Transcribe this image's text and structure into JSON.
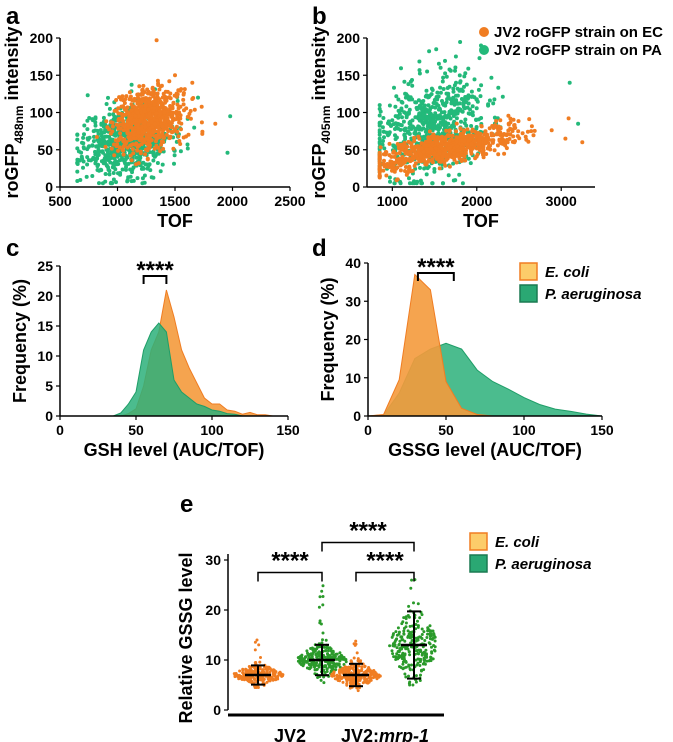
{
  "colors": {
    "ec": "#f07d22",
    "pa": "#23b97a",
    "ec_fill": "#f49a3c",
    "pa_fill": "#2bb07a",
    "ec_legend_fill": "#fccc6a",
    "ec_legend_stroke": "#f07d22",
    "pa_legend_fill": "#2aa873",
    "pa_legend_stroke": "#1b7a52",
    "pa_dot_e": "#2a9a2a"
  },
  "panels": {
    "a": "a",
    "b": "b",
    "c": "c",
    "d": "d",
    "e": "e"
  },
  "legends": {
    "ab": [
      "JV2 roGFP strain on EC",
      "JV2 roGFP strain on PA"
    ],
    "cd": [
      "E. coli",
      "P. aeruginosa"
    ],
    "e": [
      "E. coli",
      "P. aeruginosa"
    ]
  },
  "chart_data": [
    {
      "id": "a",
      "type": "scatter",
      "xlabel": "TOF",
      "ylabel_parts": [
        "roGFP",
        "488nm",
        " intensity"
      ],
      "xlim": [
        500,
        2500
      ],
      "ylim": [
        0,
        200
      ],
      "xticks": [
        500,
        1000,
        1500,
        2000,
        2500
      ],
      "yticks": [
        0,
        50,
        100,
        150,
        200
      ],
      "series": [
        {
          "name": "JV2 roGFP strain on PA",
          "color": "pa",
          "cloud": {
            "n": 700,
            "xmean": 1080,
            "xsd": 190,
            "ymean": 62,
            "ysd": 24,
            "seed": 11
          }
        },
        {
          "name": "JV2 roGFP strain on EC",
          "color": "ec",
          "cloud": {
            "n": 750,
            "xmean": 1270,
            "xsd": 150,
            "ymean": 90,
            "ysd": 20,
            "seed": 7
          }
        }
      ],
      "points": [
        {
          "x": 1340,
          "y": 197,
          "series": "ec"
        },
        {
          "x": 1500,
          "y": 150,
          "series": "ec"
        },
        {
          "x": 1650,
          "y": 140,
          "series": "ec"
        },
        {
          "x": 1850,
          "y": 85,
          "series": "ec"
        },
        {
          "x": 1980,
          "y": 95,
          "series": "pa"
        },
        {
          "x": 1700,
          "y": 120,
          "series": "pa"
        }
      ]
    },
    {
      "id": "b",
      "type": "scatter",
      "xlabel": "TOF",
      "ylabel_parts": [
        "roGFP",
        "405nm",
        " intensity"
      ],
      "xlim": [
        700,
        3400
      ],
      "ylim": [
        0,
        200
      ],
      "xticks": [
        1000,
        2000,
        3000
      ],
      "yticks": [
        0,
        50,
        100,
        150,
        200
      ],
      "series": [
        {
          "name": "JV2 roGFP strain on PA",
          "color": "pa",
          "cloud": {
            "n": 700,
            "xmean": 1450,
            "xsd": 330,
            "ymean": 78,
            "ysd": 34,
            "seed": 23
          }
        },
        {
          "name": "JV2 roGFP strain on EC",
          "color": "ec",
          "cloud": {
            "n": 750,
            "xmean": 1650,
            "xsd": 450,
            "ymean": 53,
            "ysd": 10,
            "seed": 31
          }
        }
      ],
      "points": [
        {
          "x": 1520,
          "y": 185,
          "series": "pa"
        },
        {
          "x": 2050,
          "y": 190,
          "series": "pa"
        },
        {
          "x": 3100,
          "y": 140,
          "series": "pa"
        },
        {
          "x": 3200,
          "y": 85,
          "series": "pa"
        },
        {
          "x": 3250,
          "y": 60,
          "series": "ec"
        },
        {
          "x": 3050,
          "y": 65,
          "series": "ec"
        }
      ]
    },
    {
      "id": "c",
      "type": "area",
      "xlabel": "GSH level (AUC/TOF)",
      "ylabel": "Frequency (%)",
      "xlim": [
        0,
        150
      ],
      "ylim": [
        0,
        25
      ],
      "xticks": [
        0,
        50,
        100,
        150
      ],
      "yticks": [
        0,
        5,
        10,
        15,
        20,
        25
      ],
      "significance": "****",
      "bracket": [
        55,
        70
      ],
      "series": [
        {
          "name": "E. coli",
          "color": "ec",
          "x": [
            0,
            35,
            40,
            45,
            50,
            55,
            60,
            65,
            70,
            75,
            80,
            85,
            90,
            95,
            100,
            105,
            110,
            115,
            120,
            125,
            130,
            135,
            140
          ],
          "y": [
            0,
            0,
            0,
            0.4,
            1.2,
            5,
            11,
            14,
            21,
            16.5,
            11,
            8,
            5.5,
            3,
            2,
            2,
            1,
            0.8,
            0.3,
            0.6,
            0.2,
            0.2,
            0
          ]
        },
        {
          "name": "P. aeruginosa",
          "color": "pa",
          "x": [
            0,
            35,
            40,
            45,
            50,
            55,
            60,
            65,
            70,
            75,
            80,
            85,
            90,
            95,
            100,
            105,
            110,
            115,
            120
          ],
          "y": [
            0,
            0,
            0.5,
            2,
            4,
            11,
            14,
            15.5,
            14,
            6,
            4,
            3,
            2,
            1.6,
            1,
            0.8,
            0.4,
            0.3,
            0
          ]
        }
      ]
    },
    {
      "id": "d",
      "type": "area",
      "xlabel": "GSSG level (AUC/TOF)",
      "ylabel": "Frequency (%)",
      "xlim": [
        0,
        150
      ],
      "ylim": [
        0,
        40
      ],
      "xticks": [
        0,
        50,
        100,
        150
      ],
      "yticks": [
        0,
        10,
        20,
        30,
        40
      ],
      "significance": "****",
      "bracket": [
        32,
        55
      ],
      "series": [
        {
          "name": "E. coli",
          "color": "ec",
          "x": [
            0,
            10,
            20,
            30,
            40,
            50,
            60,
            70,
            80,
            90,
            100,
            110,
            120,
            130,
            140,
            150
          ],
          "y": [
            0,
            0.4,
            9.5,
            37,
            33,
            9,
            2,
            0.4,
            0,
            0,
            0,
            0,
            0,
            0,
            0,
            0
          ]
        },
        {
          "name": "P. aeruginosa",
          "color": "pa",
          "x": [
            0,
            10,
            20,
            30,
            40,
            50,
            60,
            70,
            80,
            90,
            100,
            110,
            120,
            130,
            140,
            150
          ],
          "y": [
            0,
            0.3,
            6,
            15,
            17.5,
            19,
            17.5,
            12,
            9,
            7,
            4.8,
            3,
            1.8,
            1.2,
            0.5,
            0
          ]
        }
      ]
    },
    {
      "id": "e",
      "type": "scatter",
      "chart_kind": "dot-plot",
      "ylabel": "Relative GSSG level",
      "ylim": [
        0,
        30
      ],
      "yticks": [
        0,
        10,
        20,
        30
      ],
      "group_labels": [
        "JV2",
        "JV2;",
        "mrp-1"
      ],
      "significance": [
        "****",
        "****",
        "****"
      ],
      "comparisons": [
        [
          0,
          1
        ],
        [
          2,
          3
        ],
        [
          1,
          3
        ]
      ],
      "columns": [
        {
          "group": 0,
          "series": "E. coli",
          "color": "ec",
          "mean": 7,
          "sd": 1.2,
          "min": 4.5,
          "max": 14,
          "n": 260,
          "seed": 41
        },
        {
          "group": 0,
          "series": "P. aeruginosa",
          "color": "pa_dot_e",
          "mean": 10,
          "sd": 1.9,
          "min": 5,
          "max": 25,
          "n": 260,
          "seed": 43
        },
        {
          "group": 1,
          "series": "E. coli",
          "color": "ec",
          "mean": 7,
          "sd": 1.4,
          "min": 2.5,
          "max": 14,
          "n": 260,
          "seed": 47
        },
        {
          "group": 1,
          "series": "P. aeruginosa",
          "color": "pa_dot_e",
          "mean": 13,
          "sd": 4.2,
          "min": 5,
          "max": 28,
          "n": 260,
          "seed": 53
        }
      ]
    }
  ]
}
